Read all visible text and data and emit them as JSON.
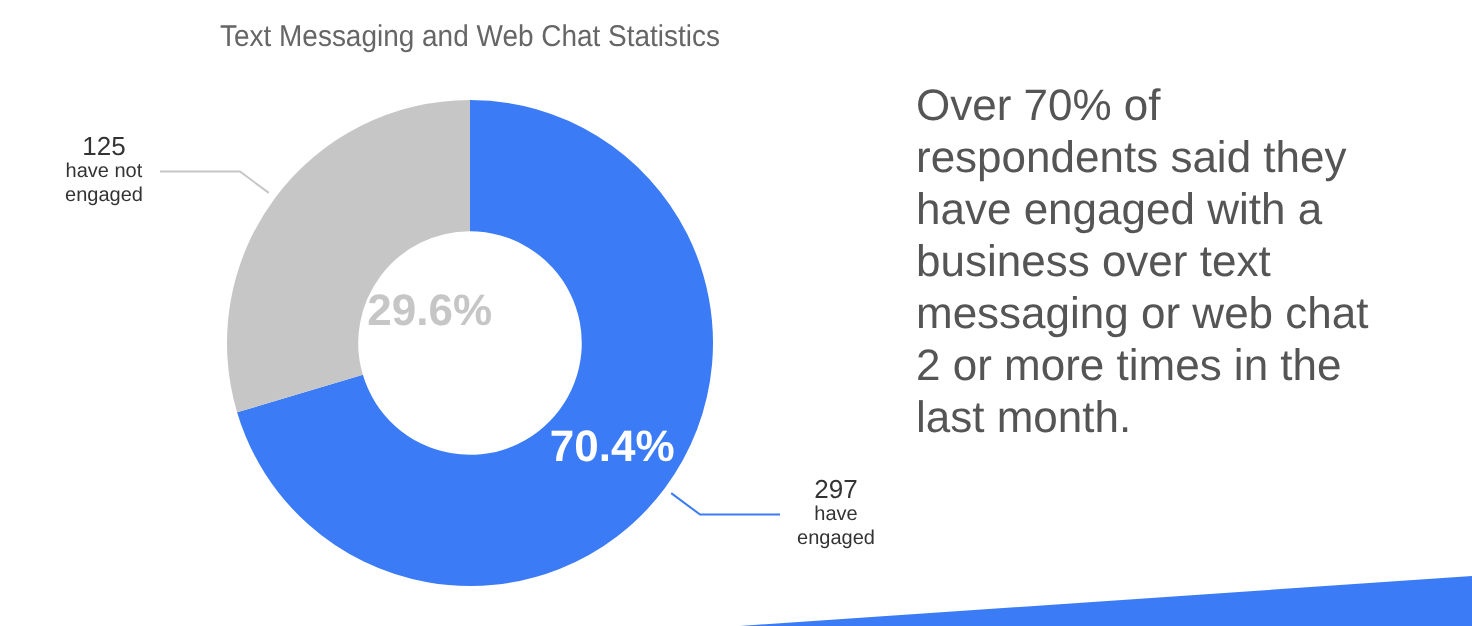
{
  "chart_data": {
    "type": "donut",
    "title": "Text Messaging and Web Chat Statistics",
    "categories": [
      "297 have engaged",
      "125 have not engaged"
    ],
    "values": [
      70.4,
      29.6
    ],
    "value_labels": [
      "70.4%",
      "29.6%"
    ],
    "colors": [
      "#3b7bf6",
      "#c6c6c6"
    ],
    "annotations": [
      "Over 70% of respondents said they have engaged with a business over text messaging or web chat 2 or more times in the last month."
    ]
  }
}
